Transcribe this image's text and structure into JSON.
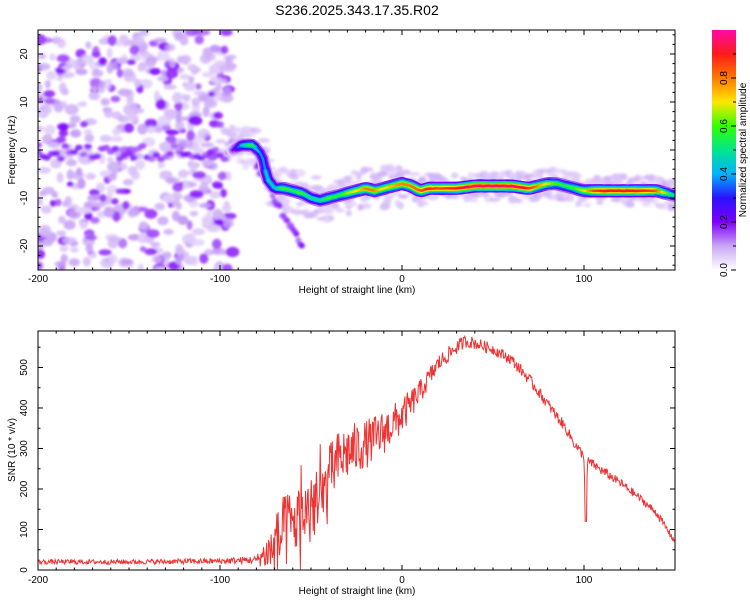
{
  "figure_title": "S236.2025.343.17.35.R02",
  "colors": {
    "snr_line": "#ee3333",
    "axis": "#000000",
    "background": "#ffffff",
    "colormap": [
      "#ffffff",
      "#c9a6f5",
      "#7f00ff",
      "#2a12ff",
      "#00b3ff",
      "#00e58c",
      "#33ff00",
      "#ffe600",
      "#ff7a00",
      "#ff1a1a",
      "#ff0aa8"
    ]
  },
  "chart_data": [
    {
      "type": "heatmap",
      "title": "",
      "xlabel": "Height of straight line (km)",
      "ylabel": "Frequency (Hz)",
      "xlim": [
        -200,
        150
      ],
      "ylim": [
        -25,
        25
      ],
      "xticks": [
        -200,
        -100,
        0,
        100
      ],
      "yticks": [
        -20,
        -10,
        0,
        10,
        20
      ],
      "colorbar": {
        "label": "Normalized spectral amplitude",
        "range": [
          0,
          1
        ],
        "ticks": [
          0.0,
          0.2,
          0.4,
          0.6,
          0.8
        ],
        "tick_labels": [
          "0.0",
          "0.2",
          "0.4",
          "0.6",
          "0.8"
        ]
      },
      "noise_region": {
        "x": [
          -200,
          -93
        ],
        "freq": [
          -25,
          25
        ],
        "amplitude": 0.15
      },
      "ridge": {
        "x": [
          -93,
          -88,
          -82,
          -77,
          -74,
          -70,
          -65,
          -60,
          -55,
          -50,
          -45,
          -40,
          -35,
          -30,
          -25,
          -20,
          -15,
          -10,
          -5,
          0,
          5,
          10,
          15,
          20,
          30,
          40,
          50,
          60,
          70,
          75,
          80,
          85,
          90,
          95,
          100,
          105,
          110,
          120,
          130,
          140,
          150
        ],
        "frequency": [
          0,
          1,
          1,
          -1,
          -6,
          -8,
          -8,
          -8.5,
          -9,
          -10,
          -10.5,
          -10,
          -9.5,
          -9,
          -8.5,
          -8,
          -8.5,
          -8,
          -7.5,
          -7,
          -7.5,
          -8.5,
          -8,
          -8,
          -8,
          -7.5,
          -7.5,
          -7.5,
          -8,
          -7.5,
          -7,
          -7,
          -7.5,
          -8,
          -8.5,
          -8.5,
          -8.5,
          -8.5,
          -8.5,
          -8.5,
          -9.5
        ],
        "amplitude": [
          0.2,
          0.45,
          0.6,
          0.35,
          0.5,
          0.45,
          0.6,
          0.55,
          0.6,
          0.5,
          0.5,
          0.6,
          0.55,
          0.65,
          0.7,
          0.8,
          0.8,
          0.7,
          0.75,
          0.8,
          0.8,
          0.85,
          0.9,
          0.85,
          0.9,
          0.95,
          0.95,
          0.95,
          0.9,
          0.8,
          0.7,
          0.6,
          0.55,
          0.6,
          0.7,
          0.85,
          0.9,
          0.9,
          0.9,
          0.85,
          0.5
        ]
      },
      "secondary_branch": {
        "x": [
          -80,
          -75,
          -70,
          -65,
          -60,
          -55
        ],
        "frequency": [
          -3,
          -6,
          -10,
          -14,
          -17,
          -20
        ],
        "amplitude": 0.2
      }
    },
    {
      "type": "line",
      "title": "",
      "xlabel": "Height of straight line (km)",
      "ylabel": "SNR (10 * v/v)",
      "xlim": [
        -200,
        150
      ],
      "ylim": [
        0,
        590
      ],
      "xticks": [
        -200,
        -100,
        0,
        100
      ],
      "yticks": [
        0,
        100,
        200,
        300,
        400,
        500
      ],
      "series": [
        {
          "color": "#ee3333",
          "x": [
            -200,
            -150,
            -100,
            -80,
            -75,
            -70,
            -65,
            -60,
            -55,
            -50,
            -45,
            -40,
            -35,
            -30,
            -20,
            -10,
            0,
            10,
            20,
            30,
            35,
            40,
            50,
            60,
            70,
            80,
            90,
            95,
            100,
            101,
            102,
            110,
            120,
            130,
            140,
            150
          ],
          "y": [
            20,
            20,
            22,
            25,
            40,
            60,
            90,
            110,
            140,
            150,
            170,
            230,
            270,
            290,
            310,
            340,
            380,
            440,
            510,
            550,
            565,
            560,
            545,
            520,
            470,
            410,
            350,
            310,
            280,
            120,
            270,
            245,
            215,
            180,
            140,
            70
          ],
          "jitter": [
            6,
            6,
            7,
            10,
            40,
            90,
            120,
            110,
            100,
            90,
            90,
            80,
            75,
            70,
            60,
            55,
            45,
            30,
            22,
            18,
            16,
            15,
            14,
            14,
            14,
            14,
            13,
            13,
            12,
            6,
            12,
            12,
            11,
            10,
            10,
            8
          ]
        }
      ]
    }
  ]
}
